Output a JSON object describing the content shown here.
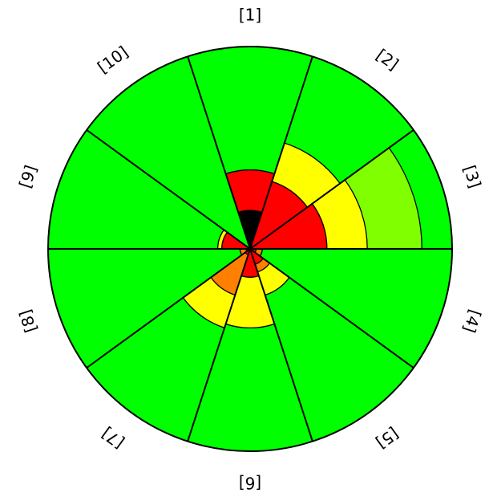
{
  "chart_data": {
    "type": "polar-area",
    "categories": [
      "[1]",
      "[2]",
      "[3]",
      "[4]",
      "[5]",
      "[6]",
      "[7]",
      "[8]",
      "[9]",
      "[10]"
    ],
    "palette": {
      "black": "#000000",
      "red": "#ff0000",
      "orange": "#ff7f00",
      "yellow": "#ffff00",
      "lime": "#7fff00",
      "green": "#00ff00"
    },
    "band_colors": [
      "black",
      "red",
      "orange",
      "yellow",
      "lime",
      "green"
    ],
    "max_value": 1.0,
    "sectors": [
      {
        "label": "[1]",
        "bands": [
          0.19,
          0.39,
          0.39,
          0.39,
          0.39,
          1.0
        ]
      },
      {
        "label": "[2]",
        "bands": [
          0.0,
          0.35,
          0.35,
          0.55,
          0.55,
          1.0
        ]
      },
      {
        "label": "[3]",
        "bands": [
          0.0,
          0.38,
          0.38,
          0.58,
          0.85,
          1.0
        ]
      },
      {
        "label": "[4]",
        "bands": [
          0.0,
          0.03,
          0.06,
          0.06,
          0.06,
          1.0
        ]
      },
      {
        "label": "[5]",
        "bands": [
          0.0,
          0.08,
          0.12,
          0.24,
          0.24,
          1.0
        ]
      },
      {
        "label": "[6]",
        "bands": [
          0.0,
          0.14,
          0.14,
          0.39,
          0.39,
          1.0
        ]
      },
      {
        "label": "[7]",
        "bands": [
          0.0,
          0.03,
          0.24,
          0.41,
          0.41,
          1.0
        ]
      },
      {
        "label": "[8]",
        "bands": [
          0.0,
          0.02,
          0.05,
          0.05,
          0.05,
          1.0
        ]
      },
      {
        "label": "[9]",
        "bands": [
          0.0,
          0.14,
          0.14,
          0.16,
          0.16,
          1.0
        ]
      },
      {
        "label": "[10]",
        "bands": [
          0.0,
          0.0,
          0.0,
          0.0,
          0.0,
          1.0
        ]
      }
    ],
    "title": "",
    "legend": "none",
    "grid": false
  }
}
